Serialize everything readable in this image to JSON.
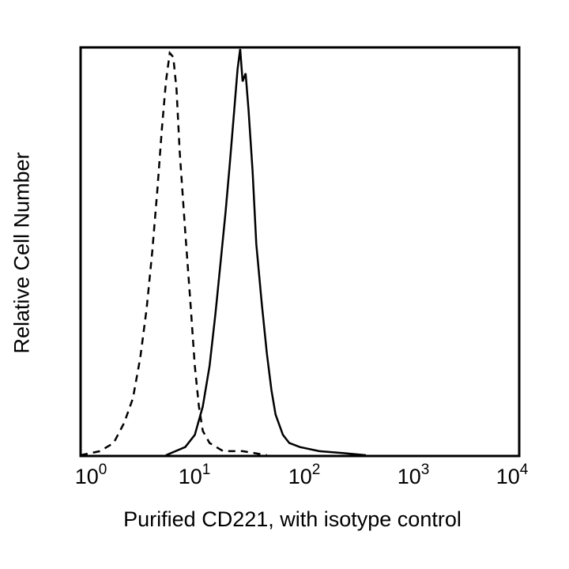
{
  "chart_data": {
    "type": "line",
    "subtype": "flow-cytometry-histogram",
    "title": "",
    "xlabel": "Purified CD221, with isotype control",
    "ylabel": "Relative Cell Number",
    "xscale": "log",
    "xlim": [
      1,
      10000
    ],
    "ylim": [
      0,
      100
    ],
    "grid": false,
    "legend": null,
    "x_ticks": [
      {
        "base": "10",
        "exp": "0"
      },
      {
        "base": "10",
        "exp": "1"
      },
      {
        "base": "10",
        "exp": "2"
      },
      {
        "base": "10",
        "exp": "3"
      },
      {
        "base": "10",
        "exp": "4"
      }
    ],
    "series": [
      {
        "name": "Isotype control",
        "style": "dashed",
        "color": "#000000",
        "x": [
          1.0,
          1.5,
          2.0,
          2.5,
          3.0,
          3.5,
          4.0,
          4.5,
          5.0,
          5.5,
          6.0,
          6.5,
          7.0,
          7.5,
          8.0,
          9.0,
          10.0,
          11.0,
          12.0,
          13.0,
          15.0,
          20.0,
          30.0,
          50.0
        ],
        "y": [
          0,
          1,
          3,
          8,
          14,
          24,
          36,
          50,
          65,
          80,
          92,
          99,
          98,
          90,
          75,
          55,
          38,
          22,
          12,
          6,
          3,
          1,
          1,
          0
        ]
      },
      {
        "name": "Purified CD221",
        "style": "solid",
        "color": "#000000",
        "x": [
          6.0,
          9.0,
          11.0,
          13.0,
          15.0,
          17.0,
          19.0,
          21.0,
          23.0,
          25.0,
          27.0,
          28.5,
          30.0,
          32.0,
          34.0,
          37.0,
          40.0,
          45.0,
          50.0,
          55.0,
          60.0,
          70.0,
          80.0,
          100.0,
          150.0,
          250.0,
          400.0
        ],
        "y": [
          0,
          2,
          5,
          12,
          22,
          35,
          48,
          60,
          72,
          84,
          95,
          100,
          92,
          94,
          85,
          70,
          52,
          37,
          25,
          16,
          10,
          5,
          3,
          2,
          1,
          0.5,
          0
        ]
      }
    ]
  }
}
